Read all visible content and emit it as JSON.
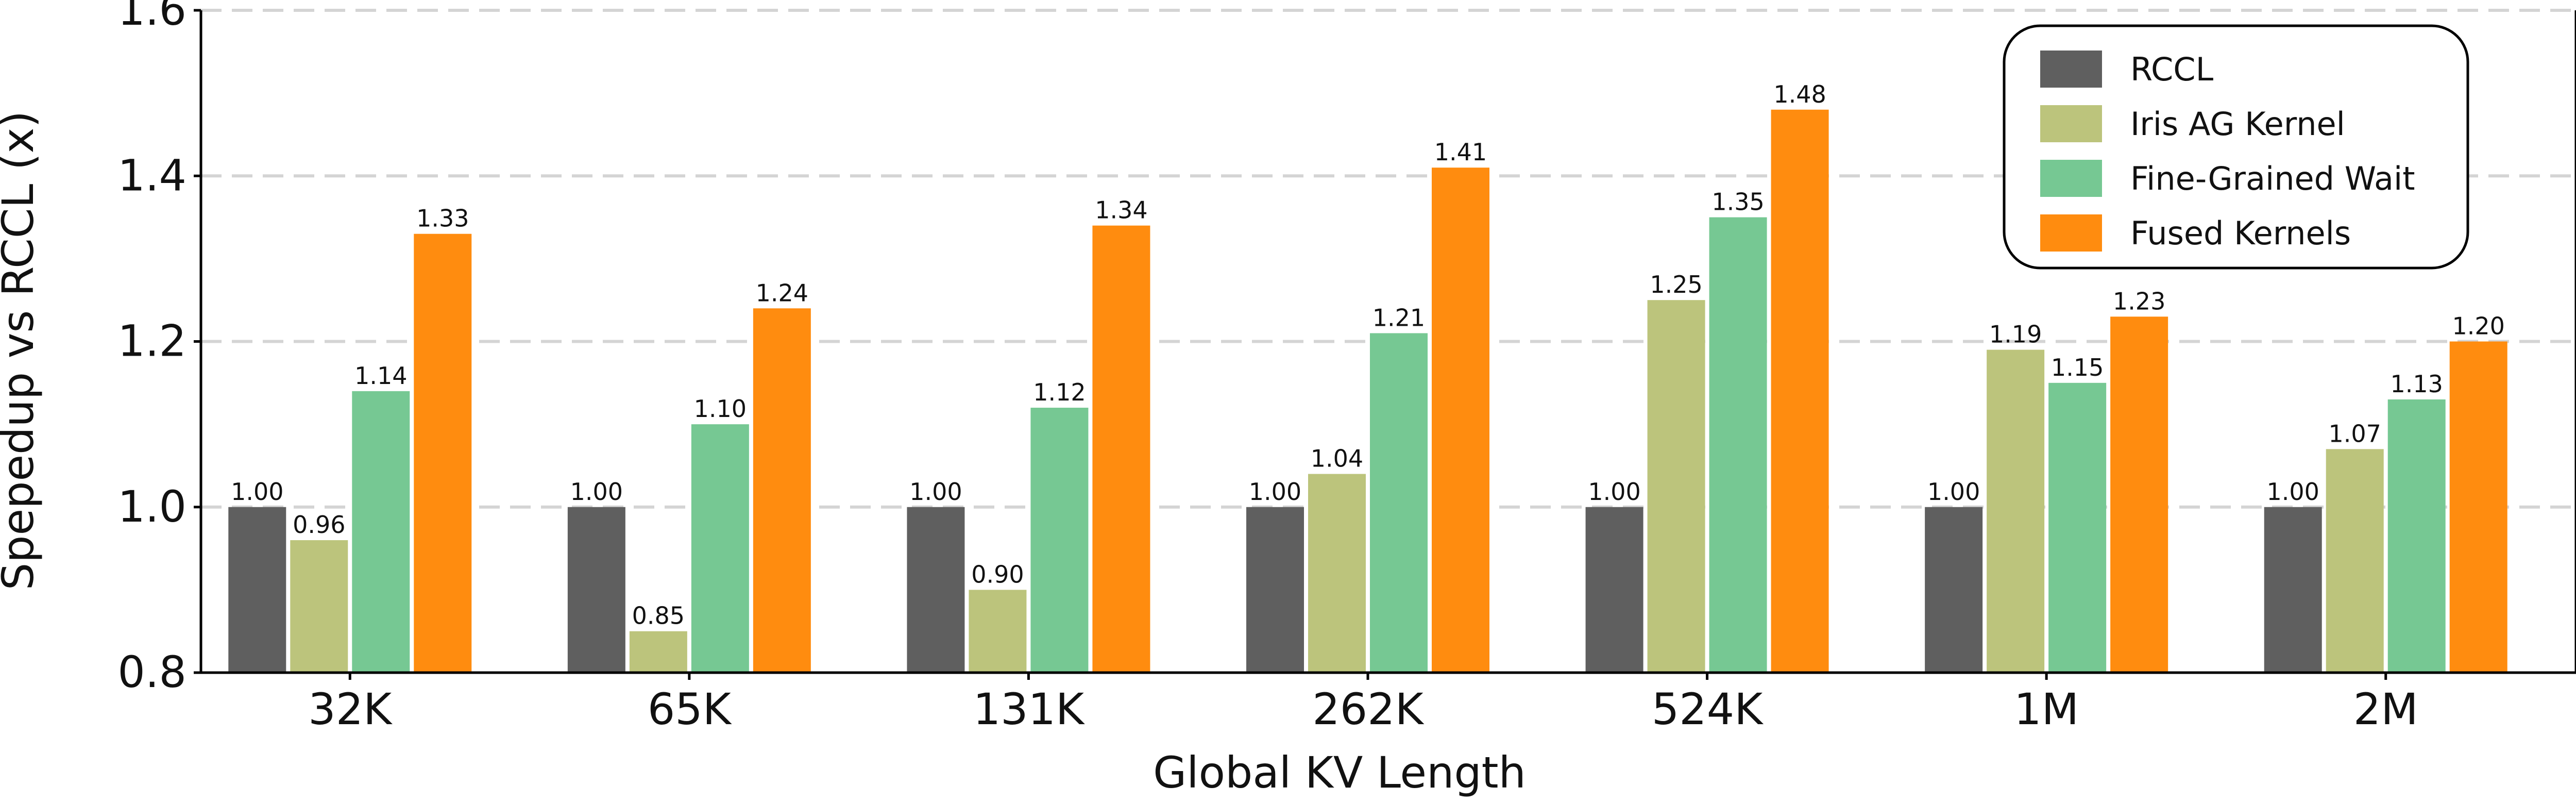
{
  "chart_data": {
    "type": "bar",
    "xlabel": "Global KV Length",
    "ylabel": "Spepedup vs RCCL (x)",
    "categories": [
      "32K",
      "65K",
      "131K",
      "262K",
      "524K",
      "1M",
      "2M"
    ],
    "ylim": [
      0.8,
      1.6
    ],
    "yticks": [
      "0.8",
      "1.0",
      "1.2",
      "1.4",
      "1.6"
    ],
    "grid": "horizontal dashed",
    "legend_position": "top-right",
    "series": [
      {
        "name": "RCCL",
        "color": "#5f5f5f",
        "values": [
          1.0,
          1.0,
          1.0,
          1.0,
          1.0,
          1.0,
          1.0
        ],
        "labels": [
          "1.00",
          "1.00",
          "1.00",
          "1.00",
          "1.00",
          "1.00",
          "1.00"
        ]
      },
      {
        "name": "Iris AG Kernel",
        "color": "#bcc47c",
        "values": [
          0.96,
          0.85,
          0.9,
          1.04,
          1.25,
          1.19,
          1.07
        ],
        "labels": [
          "0.96",
          "0.85",
          "0.90",
          "1.04",
          "1.25",
          "1.19",
          "1.07"
        ]
      },
      {
        "name": "Fine-Grained Wait",
        "color": "#76c893",
        "values": [
          1.14,
          1.1,
          1.12,
          1.21,
          1.35,
          1.15,
          1.13
        ],
        "labels": [
          "1.14",
          "1.10",
          "1.12",
          "1.21",
          "1.35",
          "1.15",
          "1.13"
        ]
      },
      {
        "name": "Fused Kernels",
        "color": "#ff8c0f",
        "values": [
          1.33,
          1.24,
          1.34,
          1.41,
          1.48,
          1.23,
          1.2
        ],
        "labels": [
          "1.33",
          "1.24",
          "1.34",
          "1.41",
          "1.48",
          "1.23",
          "1.20"
        ]
      }
    ]
  }
}
